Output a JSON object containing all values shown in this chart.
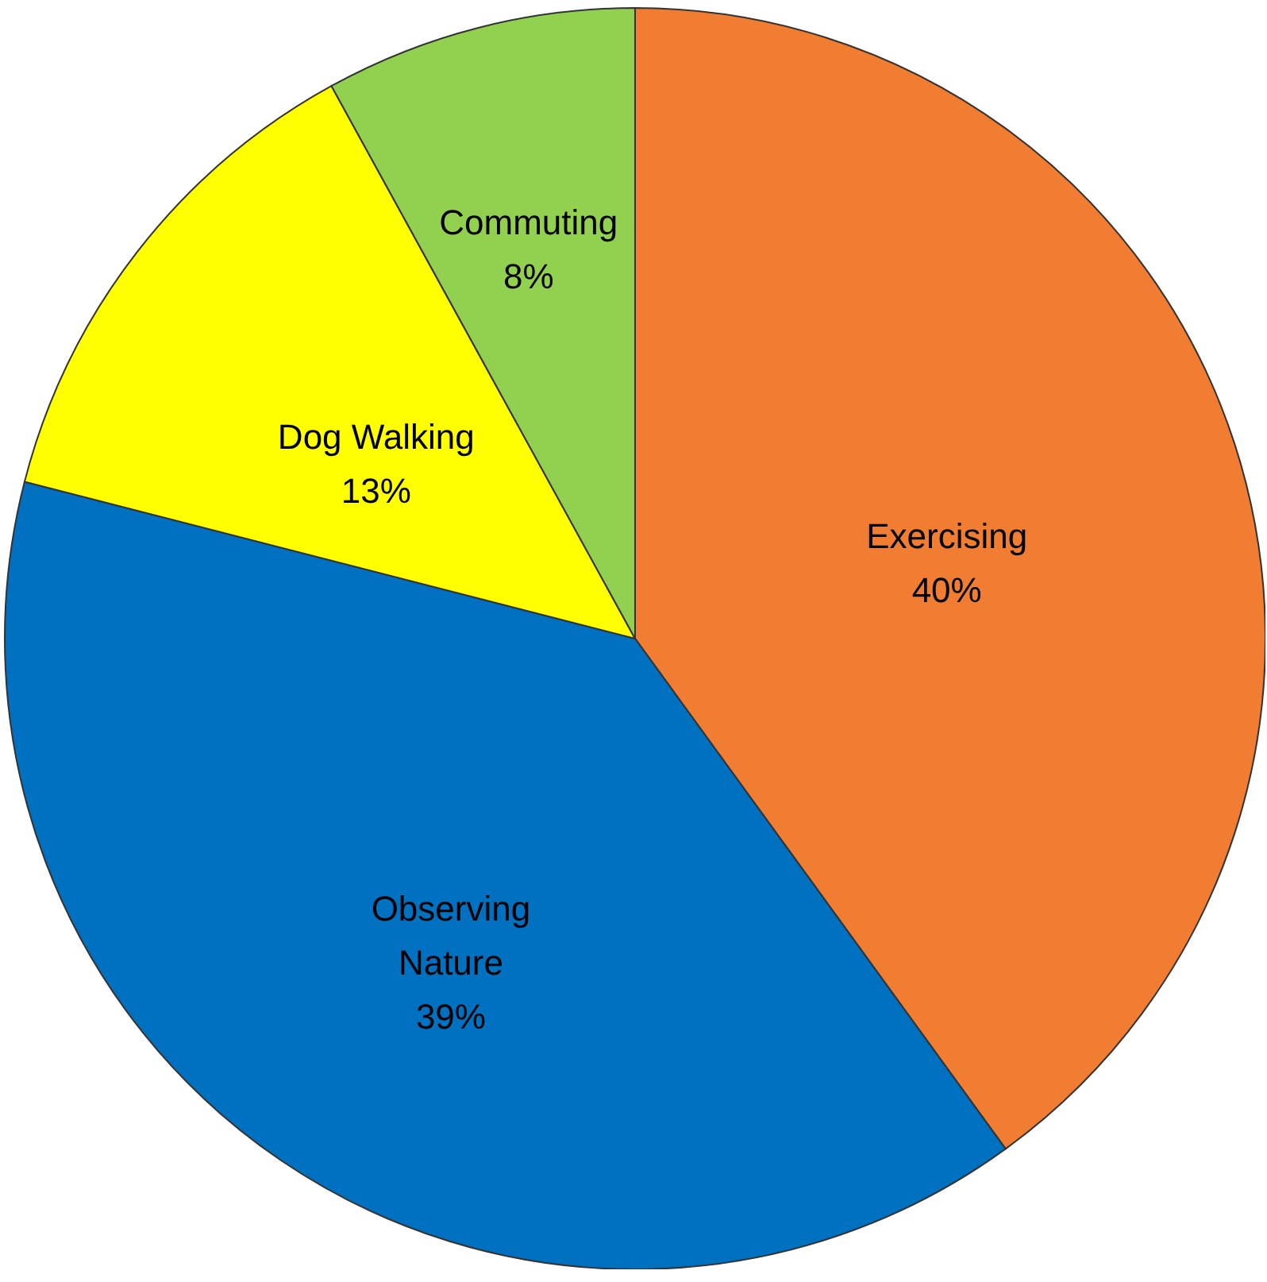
{
  "chart_data": {
    "type": "pie",
    "categories": [
      "Exercising",
      "Observing Nature",
      "Dog Walking",
      "Commuting"
    ],
    "values": [
      40,
      39,
      13,
      8
    ],
    "value_labels": [
      "40%",
      "39%",
      "13%",
      "8%"
    ],
    "colors": [
      "#f07d32",
      "#0070c0",
      "#ffff00",
      "#92d050"
    ]
  }
}
